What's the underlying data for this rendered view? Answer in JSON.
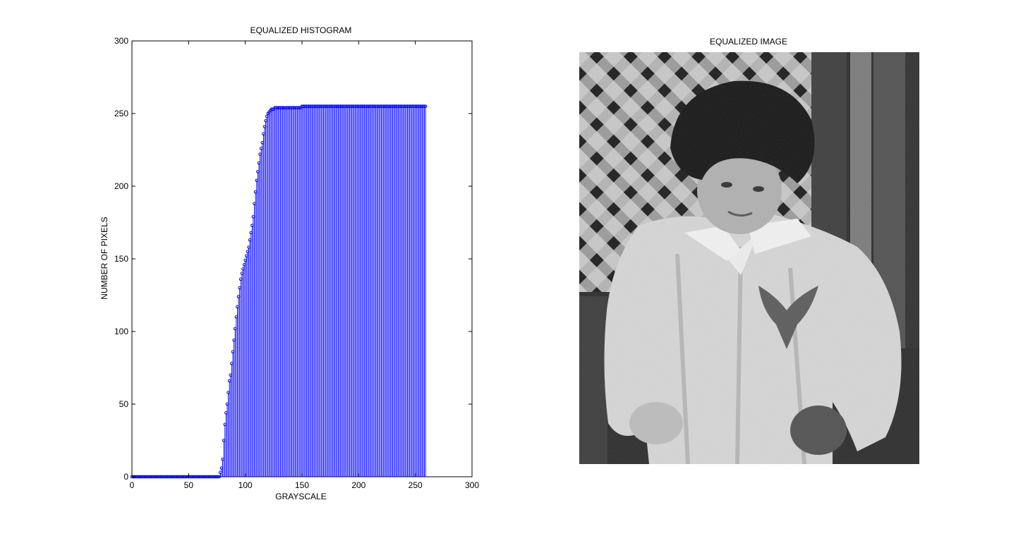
{
  "chart_data": [
    {
      "type": "stem",
      "title": "EQUALIZED HISTOGRAM",
      "xlabel": "GRAYSCALE",
      "ylabel": "NUMBER OF PIXELS",
      "xlim": [
        0,
        300
      ],
      "ylim": [
        0,
        300
      ],
      "xticks": [
        0,
        50,
        100,
        150,
        200,
        250,
        300
      ],
      "yticks": [
        0,
        50,
        100,
        150,
        200,
        250,
        300
      ],
      "grid": false,
      "series_color": "#0000ff",
      "x_start": 0,
      "values": [
        0,
        0,
        0,
        0,
        0,
        0,
        0,
        0,
        0,
        0,
        0,
        0,
        0,
        0,
        0,
        0,
        0,
        0,
        0,
        0,
        0,
        0,
        0,
        0,
        0,
        0,
        0,
        0,
        0,
        0,
        0,
        0,
        0,
        0,
        0,
        0,
        0,
        0,
        0,
        0,
        0,
        0,
        0,
        0,
        0,
        0,
        0,
        0,
        0,
        0,
        0,
        0,
        0,
        0,
        0,
        0,
        0,
        0,
        0,
        0,
        0,
        0,
        0,
        0,
        0,
        0,
        0,
        0,
        0,
        0,
        0,
        0,
        0,
        0,
        0,
        0,
        0,
        0,
        3,
        6,
        12,
        25,
        36,
        44,
        50,
        58,
        66,
        70,
        78,
        86,
        94,
        102,
        110,
        117,
        124,
        130,
        136,
        140,
        143,
        146,
        149,
        152,
        155,
        158,
        163,
        168,
        173,
        179,
        188,
        196,
        204,
        210,
        216,
        222,
        226,
        230,
        236,
        241,
        245,
        248,
        250,
        251,
        252,
        253,
        253,
        253,
        254,
        254,
        254,
        254,
        254,
        254,
        254,
        254,
        254,
        254,
        254,
        254,
        254,
        254,
        254,
        254,
        254,
        254,
        254,
        254,
        254,
        254,
        254,
        254,
        255,
        255,
        255,
        255,
        255,
        255,
        255,
        255,
        255,
        255,
        255,
        255,
        255,
        255,
        255,
        255,
        255,
        255,
        255,
        255,
        255,
        255,
        255,
        255,
        255,
        255,
        255,
        255,
        255,
        255,
        255,
        255,
        255,
        255,
        255,
        255,
        255,
        255,
        255,
        255,
        255,
        255,
        255,
        255,
        255,
        255,
        255,
        255,
        255,
        255,
        255,
        255,
        255,
        255,
        255,
        255,
        255,
        255,
        255,
        255,
        255,
        255,
        255,
        255,
        255,
        255,
        255,
        255,
        255,
        255,
        255,
        255,
        255,
        255,
        255,
        255,
        255,
        255,
        255,
        255,
        255,
        255,
        255,
        255,
        255,
        255,
        255,
        255,
        255,
        255,
        255,
        255,
        255,
        255,
        255,
        255,
        255,
        255,
        255,
        255,
        255,
        255,
        255,
        255,
        255,
        255,
        255,
        255,
        255,
        255
      ]
    }
  ],
  "image_panel": {
    "title": "EQUALIZED IMAGE",
    "content": "grayscale photograph of a child in a light jacket standing in front of a wooden lattice fence"
  }
}
